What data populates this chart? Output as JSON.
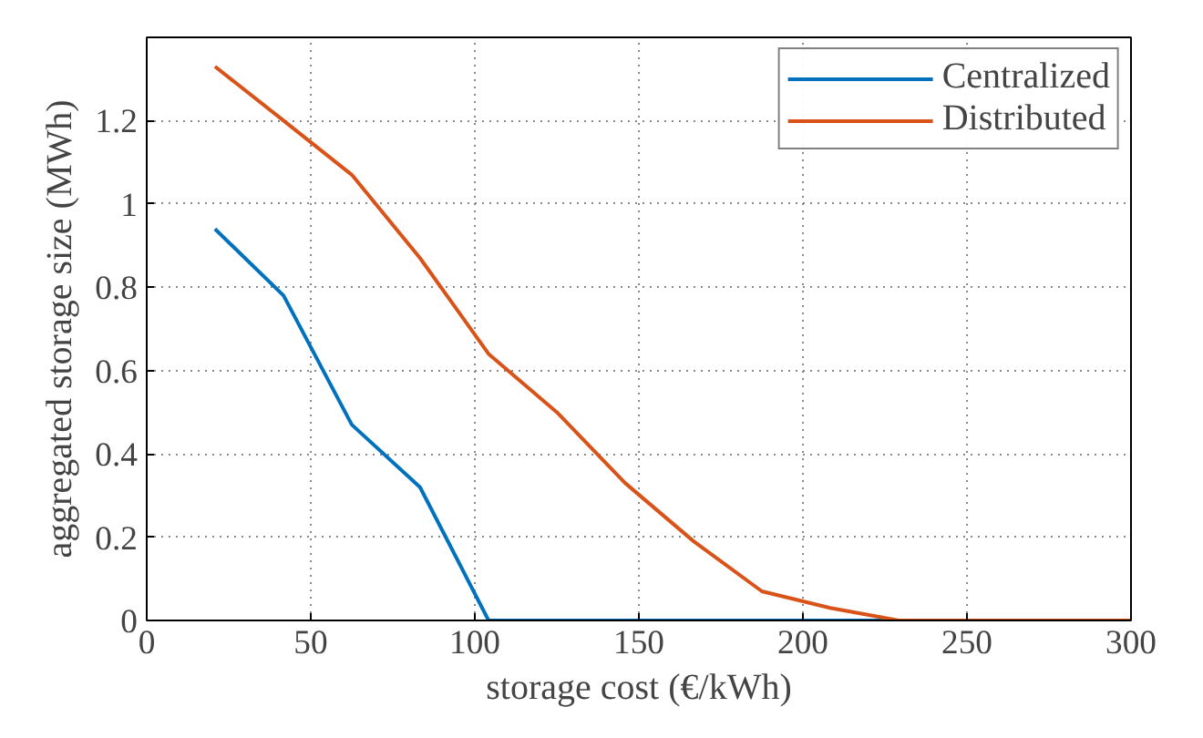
{
  "chart_data": {
    "type": "line",
    "xlabel": "storage cost (€/kWh)",
    "ylabel": "aggregated storage size (MWh)",
    "xlim": [
      0,
      300
    ],
    "xticks": [
      0,
      50,
      100,
      150,
      200,
      250,
      300
    ],
    "ylim": [
      0,
      1.4
    ],
    "yticks": [
      0,
      0.2,
      0.4,
      0.6,
      0.8,
      1,
      1.2
    ],
    "grid": true,
    "legend": "top right",
    "line_style": "solid",
    "series": [
      {
        "name": "Centralized",
        "color": "#0072bd",
        "x": [
          20.8,
          41.7,
          62.5,
          83.3,
          104.2,
          125,
          145.8,
          166.7,
          187.5,
          208.3,
          229.2
        ],
        "values": [
          0.94,
          0.78,
          0.47,
          0.32,
          0,
          0,
          0,
          0,
          0,
          0,
          0
        ]
      },
      {
        "name": "Distributed",
        "color": "#d95319",
        "x": [
          20.8,
          41.7,
          62.5,
          83.3,
          104.2,
          125,
          145.8,
          166.7,
          187.5,
          208.3,
          229.2,
          250,
          270.8,
          291.7,
          300
        ],
        "values": [
          1.33,
          1.2,
          1.07,
          0.87,
          0.64,
          0.5,
          0.33,
          0.19,
          0.07,
          0.03,
          0,
          0,
          0,
          0,
          0
        ]
      }
    ]
  }
}
